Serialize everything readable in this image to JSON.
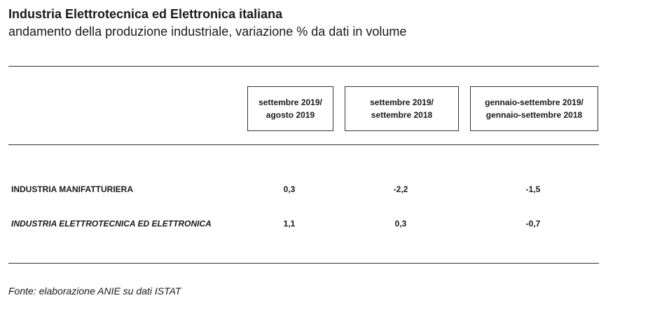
{
  "header": {
    "title": "Industria Elettrotecnica ed Elettronica italiana",
    "subtitle": "andamento della produzione industriale, variazione % da dati in volume"
  },
  "table": {
    "columns": [
      {
        "line1": "settembre 2019/",
        "line2": "agosto 2019"
      },
      {
        "line1": "settembre 2019/",
        "line2": "settembre 2018"
      },
      {
        "line1": "gennaio-settembre 2019/",
        "line2": "gennaio-settembre 2018"
      }
    ],
    "rows": [
      {
        "label": "INDUSTRIA MANIFATTURIERA",
        "values": [
          "0,3",
          "-2,2",
          "-1,5"
        ]
      },
      {
        "label": "INDUSTRIA ELETTROTECNICA ED ELETTRONICA",
        "values": [
          "1,1",
          "0,3",
          "-0,7"
        ]
      }
    ]
  },
  "footer": {
    "source": "Fonte: elaborazione ANIE su dati ISTAT"
  }
}
